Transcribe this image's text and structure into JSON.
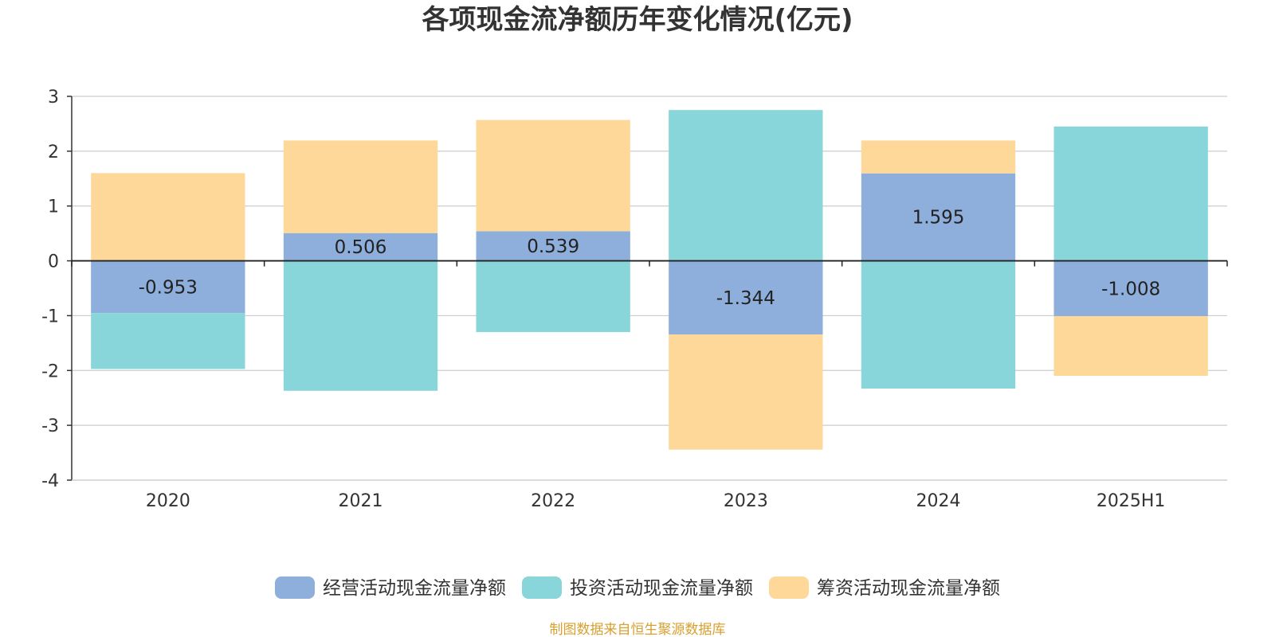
{
  "chart_data": {
    "type": "bar",
    "stacked": true,
    "title": "各项现金流净额历年变化情况(亿元)",
    "categories": [
      "2020",
      "2021",
      "2022",
      "2023",
      "2024",
      "2025H1"
    ],
    "series": [
      {
        "name": "经营活动现金流量净额",
        "color": "#8eaedb",
        "values": [
          -0.953,
          0.506,
          0.539,
          -1.344,
          1.595,
          -1.008
        ],
        "labels": [
          "-0.953",
          "0.506",
          "0.539",
          "-1.344",
          "1.595",
          "-1.008"
        ]
      },
      {
        "name": "投资活动现金流量净额",
        "color": "#88d6d9",
        "values": [
          -1.02,
          -2.37,
          -1.3,
          2.75,
          -2.33,
          2.45
        ]
      },
      {
        "name": "筹资活动现金流量净额",
        "color": "#fed899",
        "values": [
          1.6,
          1.69,
          2.03,
          -2.1,
          0.6,
          -1.09
        ]
      }
    ],
    "ylim": [
      -4,
      3
    ],
    "yticks": [
      3,
      2,
      1,
      0,
      -1,
      -2,
      -3,
      -4
    ],
    "ytick_labels": [
      "3",
      "2",
      "1",
      "0",
      "-1",
      "-2",
      "-3",
      "-4"
    ],
    "grid": true,
    "legend_position": "bottom"
  },
  "source": {
    "text": "制图数据来自恒生聚源数据库",
    "color": "#d8a030"
  }
}
